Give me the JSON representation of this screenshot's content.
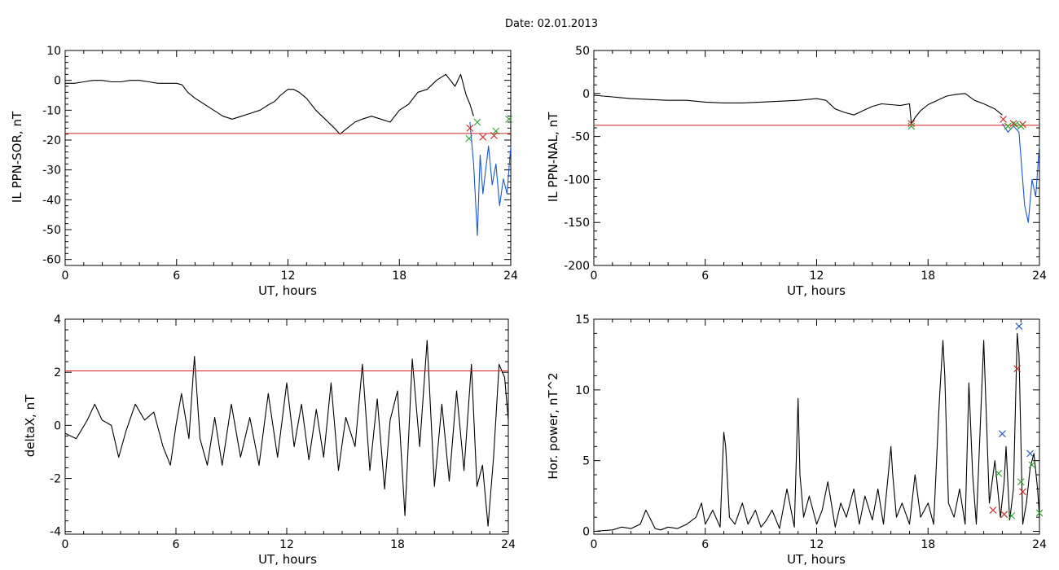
{
  "figure": {
    "title": "Date:  02.01.2013"
  },
  "charts": [
    {
      "type": "line",
      "ylabel": "IL PPN-SOR, nT",
      "xlabel": "UT, hours",
      "xlim": [
        0,
        24
      ],
      "ylim": [
        -62,
        10
      ],
      "xticks": [
        0,
        6,
        12,
        18,
        24
      ],
      "yticks": [
        10,
        0,
        -10,
        -20,
        -30,
        -40,
        -50,
        -60
      ],
      "threshold": -17.8,
      "series": [
        {
          "color": "#000000",
          "x": [
            0,
            0.5,
            1,
            1.5,
            2,
            2.5,
            3,
            3.5,
            4,
            4.5,
            5,
            5.5,
            6,
            6.3,
            6.6,
            7,
            7.5,
            8,
            8.5,
            9,
            9.5,
            10,
            10.5,
            11,
            11.3,
            11.6,
            12,
            12.3,
            12.6,
            13,
            13.5,
            14,
            14.5,
            14.8,
            15.2,
            15.6,
            16,
            16.5,
            17,
            17.5,
            18,
            18.5,
            19,
            19.5,
            20,
            20.5,
            21,
            21.3,
            21.6,
            21.8,
            22
          ],
          "y": [
            -1,
            -1,
            -0.5,
            0,
            0,
            -0.5,
            -0.5,
            0,
            0,
            -0.5,
            -1,
            -1,
            -1,
            -1.5,
            -4,
            -6,
            -8,
            -10,
            -12,
            -13,
            -12,
            -11,
            -10,
            -8,
            -7,
            -5,
            -3,
            -3,
            -4,
            -6,
            -10,
            -13,
            -16,
            -18,
            -16,
            -14,
            -13,
            -12,
            -13,
            -14,
            -10,
            -8,
            -4,
            -3,
            0,
            2,
            -2,
            2,
            -5,
            -8,
            -12
          ]
        },
        {
          "color": "#1a57cc",
          "x": [
            21.8,
            22,
            22.2,
            22.35,
            22.5,
            22.65,
            22.8,
            23,
            23.2,
            23.4,
            23.6,
            23.8,
            24
          ],
          "y": [
            -14,
            -28,
            -52,
            -25,
            -38,
            -30,
            -22,
            -35,
            -28,
            -42,
            -33,
            -38,
            -22
          ]
        }
      ],
      "markers": [
        {
          "color": "#d02020",
          "x": [
            21.8,
            22.5,
            23.1
          ],
          "y": [
            -16,
            -19,
            -18.5
          ]
        },
        {
          "color": "#2ea32e",
          "x": [
            21.75,
            22.2,
            23.2,
            23.9
          ],
          "y": [
            -19.5,
            -14,
            -17,
            -13
          ]
        }
      ]
    },
    {
      "type": "line",
      "ylabel": "IL PPN-NAL, nT",
      "xlabel": "UT, hours",
      "xlim": [
        0,
        24
      ],
      "ylim": [
        -200,
        50
      ],
      "xticks": [
        0,
        6,
        12,
        18,
        24
      ],
      "yticks": [
        50,
        0,
        -50,
        -100,
        -150,
        -200
      ],
      "threshold": -37,
      "series": [
        {
          "color": "#000000",
          "x": [
            0,
            0.5,
            1,
            2,
            3,
            4,
            5,
            6,
            7,
            8,
            9,
            10,
            11,
            12,
            12.5,
            13,
            13.5,
            14,
            14.5,
            15,
            15.5,
            16,
            16.5,
            17,
            17.1,
            17.3,
            17.6,
            18,
            18.5,
            19,
            19.5,
            20,
            20.5,
            21,
            21.3,
            21.6,
            22
          ],
          "y": [
            -2,
            -3,
            -4,
            -6,
            -7,
            -8,
            -8,
            -10,
            -11,
            -11,
            -10,
            -9,
            -8,
            -6,
            -8,
            -18,
            -22,
            -25,
            -20,
            -15,
            -12,
            -13,
            -14,
            -12,
            -35,
            -28,
            -20,
            -13,
            -8,
            -3,
            -1,
            0,
            -8,
            -12,
            -15,
            -18,
            -25
          ]
        },
        {
          "color": "#1a57cc",
          "x": [
            22,
            22.3,
            22.6,
            22.9,
            23.2,
            23.4,
            23.6,
            23.8,
            24
          ],
          "y": [
            -35,
            -45,
            -38,
            -45,
            -130,
            -150,
            -100,
            -120,
            -60
          ]
        }
      ],
      "markers": [
        {
          "color": "#d02020",
          "x": [
            17.1,
            22.05,
            22.6,
            23.1
          ],
          "y": [
            -35,
            -30,
            -35,
            -36
          ]
        },
        {
          "color": "#2ea32e",
          "x": [
            17.1,
            22.3,
            22.7,
            23.0
          ],
          "y": [
            -38,
            -38,
            -36,
            -38
          ]
        }
      ]
    },
    {
      "type": "line",
      "ylabel": "deltaX, nT",
      "xlabel": "UT, hours",
      "xlim": [
        0,
        24
      ],
      "ylim": [
        -4.1,
        4
      ],
      "xticks": [
        0,
        6,
        12,
        18,
        24
      ],
      "yticks": [
        4,
        2,
        0,
        -2,
        -4
      ],
      "threshold": 2.05,
      "series": [
        {
          "color": "#000000",
          "x": [
            0,
            0.6,
            1.2,
            1.6,
            2,
            2.5,
            2.9,
            3.3,
            3.8,
            4.3,
            4.8,
            5.3,
            5.7,
            6,
            6.3,
            6.7,
            7,
            7.3,
            7.7,
            8.1,
            8.5,
            9,
            9.5,
            10,
            10.5,
            11,
            11.5,
            12,
            12.4,
            12.8,
            13.2,
            13.6,
            14,
            14.4,
            14.8,
            15.2,
            15.7,
            16.1,
            16.5,
            16.9,
            17.3,
            17.6,
            18,
            18.4,
            18.8,
            19.2,
            19.6,
            20,
            20.4,
            20.8,
            21.2,
            21.6,
            22,
            22.3,
            22.6,
            22.9,
            23.2,
            23.5,
            23.8,
            24
          ],
          "y": [
            -0.3,
            -0.5,
            0.2,
            0.8,
            0.2,
            0,
            -1.2,
            -0.2,
            0.8,
            0.2,
            0.5,
            -0.8,
            -1.5,
            0,
            1.2,
            -0.5,
            2.6,
            -0.5,
            -1.5,
            0.3,
            -1.5,
            0.8,
            -1.2,
            0.3,
            -1.5,
            1.2,
            -1.2,
            1.6,
            -0.8,
            0.8,
            -1.3,
            0.6,
            -1.2,
            1.6,
            -1.7,
            0.3,
            -0.8,
            2.3,
            -1.7,
            1,
            -2.4,
            0.2,
            1.3,
            -3.4,
            2.5,
            -0.8,
            3.2,
            -2.3,
            0.8,
            -2.1,
            1.3,
            -1.7,
            2.3,
            -2.3,
            -1.5,
            -3.8,
            -1.2,
            2.3,
            1.8,
            0.2
          ]
        }
      ],
      "markers": []
    },
    {
      "type": "line",
      "ylabel": "Hor. power, nT^2",
      "xlabel": "UT, hours",
      "xlim": [
        0,
        24
      ],
      "ylim": [
        -0.2,
        15
      ],
      "xticks": [
        0,
        6,
        12,
        18,
        24
      ],
      "yticks": [
        15,
        10,
        5,
        0
      ],
      "threshold": null,
      "series": [
        {
          "color": "#000000",
          "x": [
            0,
            1,
            1.5,
            2,
            2.5,
            2.8,
            3,
            3.3,
            3.6,
            4,
            4.5,
            5,
            5.5,
            5.8,
            6,
            6.4,
            6.8,
            7,
            7.1,
            7.3,
            7.6,
            8,
            8.3,
            8.7,
            9,
            9.3,
            9.6,
            10,
            10.4,
            10.8,
            11,
            11.1,
            11.3,
            11.6,
            12,
            12.3,
            12.6,
            13,
            13.3,
            13.6,
            14,
            14.3,
            14.6,
            15,
            15.3,
            15.6,
            16,
            16.1,
            16.3,
            16.6,
            17,
            17.3,
            17.6,
            18,
            18.3,
            18.6,
            18.8,
            18.9,
            19.1,
            19.4,
            19.7,
            20,
            20.2,
            20.4,
            20.6,
            21,
            21.3,
            21.6,
            21.9,
            22.1,
            22.2,
            22.4,
            22.6,
            22.8,
            22.9,
            23.1,
            23.3,
            23.5,
            23.7,
            23.9,
            24
          ],
          "y": [
            0,
            0.1,
            0.3,
            0.2,
            0.5,
            1.5,
            1,
            0.2,
            0.1,
            0.3,
            0.2,
            0.5,
            1,
            2,
            0.5,
            1.5,
            0.3,
            7,
            6,
            1,
            0.5,
            2,
            0.5,
            1.5,
            0.3,
            0.8,
            1.5,
            0.2,
            3,
            0.3,
            9.4,
            4,
            1,
            2.5,
            0.5,
            1.5,
            3.5,
            0.3,
            2,
            1,
            3,
            0.5,
            2.5,
            0.8,
            3,
            0.5,
            6,
            4,
            1,
            2,
            0.5,
            4,
            1,
            2,
            0.5,
            9,
            13.5,
            11,
            2,
            1,
            3,
            0.5,
            10.5,
            4,
            0.5,
            13.5,
            2,
            5,
            1,
            3.5,
            6,
            0.8,
            3,
            14,
            12.5,
            0.5,
            2,
            4.5,
            5.5,
            3,
            1
          ]
        }
      ],
      "markers": [
        {
          "color": "#d02020",
          "x": [
            21.5,
            22.1,
            22.8,
            23.1
          ],
          "y": [
            1.5,
            1.2,
            11.5,
            2.8
          ]
        },
        {
          "color": "#2ea32e",
          "x": [
            21.8,
            22.5,
            23.0,
            23.6,
            24
          ],
          "y": [
            4.1,
            1.1,
            3.5,
            4.7,
            1.3
          ]
        },
        {
          "color": "#1a57cc",
          "x": [
            22.0,
            22.9,
            23.5
          ],
          "y": [
            6.9,
            14.5,
            5.5
          ]
        }
      ]
    }
  ]
}
